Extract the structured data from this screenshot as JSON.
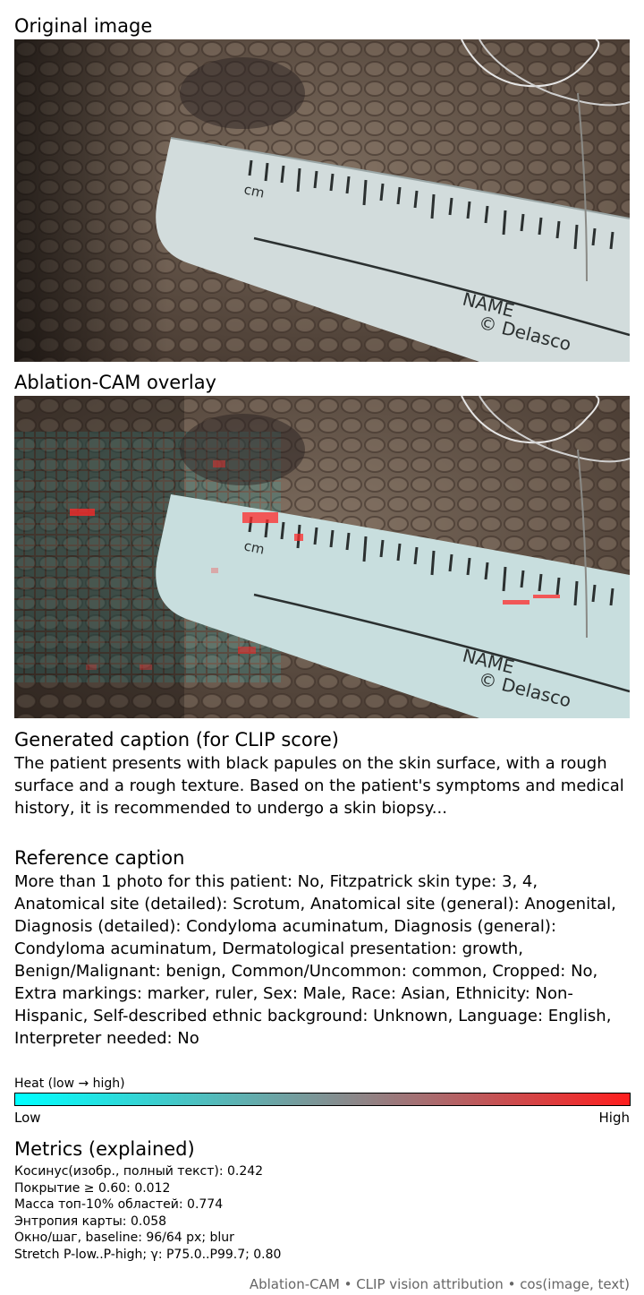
{
  "original": {
    "title": "Original image",
    "ruler_unit": "cm",
    "ruler_name": "NAME",
    "ruler_brand": "© Delasco"
  },
  "overlay": {
    "title": "Ablation-CAM overlay"
  },
  "generated_caption": {
    "title": "Generated caption (for CLIP score)",
    "text": "The patient presents with black papules on the skin surface, with a rough surface and a rough texture. Based on the patient's symptoms and medical history, it is recommended to undergo a skin biopsy..."
  },
  "reference_caption": {
    "title": "Reference caption",
    "text": "More than 1 photo for this patient: No, Fitzpatrick skin type: 3, 4, Anatomical site (detailed): Scrotum, Anatomical site (general): Anogenital, Diagnosis (detailed): Condyloma acuminatum, Diagnosis (general): Condyloma acuminatum, Dermatological presentation: growth, Benign/Malignant: benign, Common/Uncommon: common, Cropped: No, Extra markings: marker, ruler, Sex: Male, Race: Asian, Ethnicity: Non-Hispanic, Self-described ethnic background: Unknown, Language: English, Interpreter needed: No"
  },
  "heat_legend": {
    "title": "Heat (low → high)",
    "low": "Low",
    "high": "High",
    "colors": [
      "#00ffff",
      "#55b9b9",
      "#a86d70",
      "#ff1e1e"
    ]
  },
  "metrics": {
    "title": "Metrics (explained)",
    "items": [
      "Косинус(изобр., полный текст): 0.242",
      "Покрытие ≥ 0.60: 0.012",
      "Масса топ-10% областей: 0.774",
      "Энтропия карты: 0.058",
      "Окно/шаг, baseline: 96/64 px; blur",
      "Stretch P-low..P-high; γ: P75.0..P99.7; 0.80"
    ]
  },
  "footer": "Ablation-CAM • CLIP vision attribution • cos(image, text)"
}
